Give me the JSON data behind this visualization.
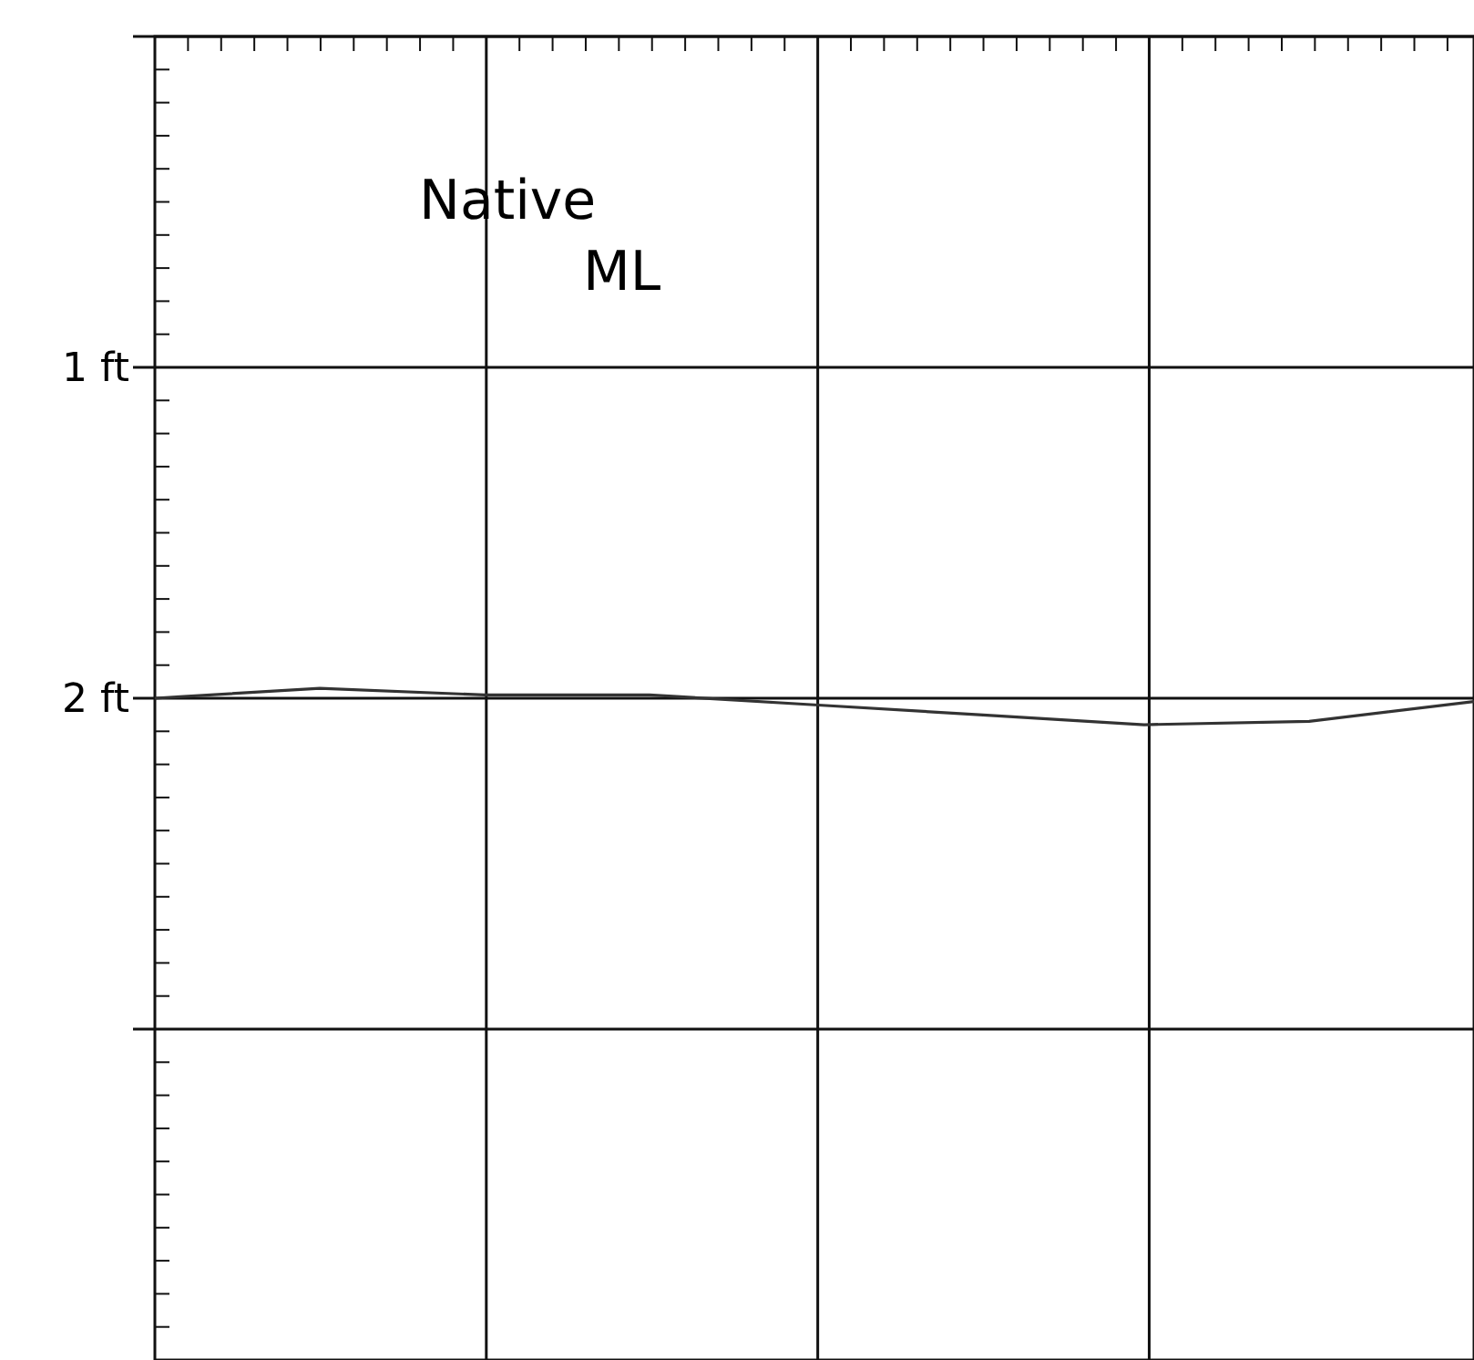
{
  "chart_data": {
    "type": "line",
    "categories": [
      null,
      null,
      null,
      null,
      null,
      null,
      null,
      null,
      null
    ],
    "series": [
      {
        "color": "#333333",
        "values": [
          2.0,
          1.97,
          1.99,
          1.99,
          2.02,
          2.05,
          2.08,
          2.07,
          2.01
        ]
      }
    ],
    "ylim": [
      4,
      0
    ],
    "yticks": [
      {
        "value": 0,
        "label": null
      },
      {
        "value": 0.1,
        "label": null
      },
      {
        "value": 0.2,
        "label": null
      },
      {
        "value": 0.3,
        "label": null
      },
      {
        "value": 0.4,
        "label": null
      },
      {
        "value": 0.5,
        "label": null
      },
      {
        "value": 0.6,
        "label": null
      },
      {
        "value": 0.7,
        "label": null
      },
      {
        "value": 0.8,
        "label": null
      },
      {
        "value": 0.9,
        "label": null
      },
      {
        "value": 1,
        "label": "1 ft"
      },
      {
        "value": 1.1,
        "label": null
      },
      {
        "value": 1.2,
        "label": null
      },
      {
        "value": 1.3,
        "label": null
      },
      {
        "value": 1.4,
        "label": null
      },
      {
        "value": 1.5,
        "label": null
      },
      {
        "value": 1.6,
        "label": null
      },
      {
        "value": 1.7,
        "label": null
      },
      {
        "value": 1.8,
        "label": null
      },
      {
        "value": 1.9,
        "label": null
      },
      {
        "value": 2,
        "label": "2 ft"
      },
      {
        "value": 2.1,
        "label": null
      },
      {
        "value": 2.2,
        "label": null
      },
      {
        "value": 2.3,
        "label": null
      },
      {
        "value": 2.4,
        "label": null
      },
      {
        "value": 2.5,
        "label": null
      },
      {
        "value": 2.6,
        "label": null
      },
      {
        "value": 2.7,
        "label": null
      },
      {
        "value": 2.8,
        "label": null
      },
      {
        "value": 2.9,
        "label": null
      },
      {
        "value": 3,
        "label": null
      },
      {
        "value": 3.1,
        "label": null
      },
      {
        "value": 3.2,
        "label": null
      },
      {
        "value": 3.3,
        "label": null
      },
      {
        "value": 3.4,
        "label": null
      },
      {
        "value": 3.5,
        "label": null
      },
      {
        "value": 3.6,
        "label": null
      },
      {
        "value": 3.7,
        "label": null
      },
      {
        "value": 3.8,
        "label": null
      },
      {
        "value": 3.9,
        "label": null
      }
    ],
    "grid": true,
    "tick_labels": "y",
    "marker": "none",
    "line_style": "solid",
    "annotations": [
      "Native ML"
    ]
  }
}
